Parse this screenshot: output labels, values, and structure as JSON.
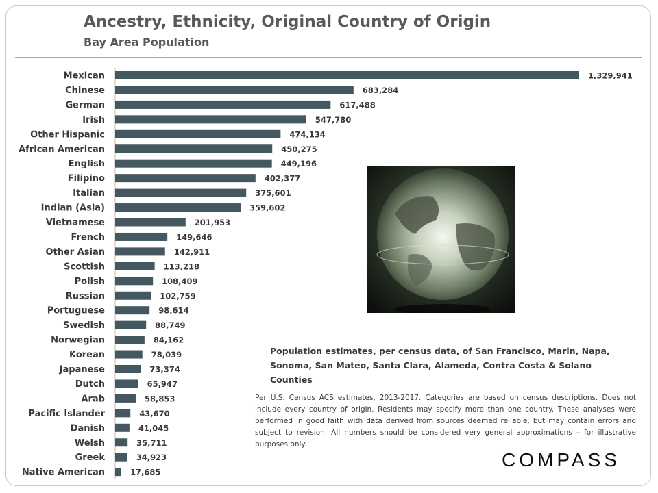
{
  "header": {
    "title": "Ancestry, Ethnicity, Original Country of Origin",
    "subtitle": "Bay Area Population"
  },
  "chart_data": {
    "type": "bar",
    "orientation": "horizontal",
    "title": "Ancestry, Ethnicity, Original Country of Origin",
    "subtitle": "Bay Area Population",
    "xlabel": "",
    "ylabel": "",
    "xlim": [
      0,
      1329941
    ],
    "grid": false,
    "categories": [
      "Mexican",
      "Chinese",
      "German",
      "Irish",
      "Other Hispanic",
      "African American",
      "English",
      "Filipino",
      "Italian",
      "Indian (Asia)",
      "Vietnamese",
      "French",
      "Other Asian",
      "Scottish",
      "Polish",
      "Russian",
      "Portuguese",
      "Swedish",
      "Norwegian",
      "Korean",
      "Japanese",
      "Dutch",
      "Arab",
      "Pacific Islander",
      "Danish",
      "Welsh",
      "Greek",
      "Native American"
    ],
    "values": [
      1329941,
      683284,
      617488,
      547780,
      474134,
      450275,
      449196,
      402377,
      375601,
      359602,
      201953,
      149646,
      142911,
      113218,
      108409,
      102759,
      98614,
      88749,
      84162,
      78039,
      73374,
      65947,
      58853,
      43670,
      41045,
      35711,
      34923,
      17685
    ],
    "value_labels": [
      "1,329,941",
      "683,284",
      "617,488",
      "547,780",
      "474,134",
      "450,275",
      "449,196",
      "402,377",
      "375,601",
      "359,602",
      "201,953",
      "149,646",
      "142,911",
      "113,218",
      "108,409",
      "102,759",
      "98,614",
      "88,749",
      "84,162",
      "78,039",
      "73,374",
      "65,947",
      "58,853",
      "43,670",
      "41,045",
      "35,711",
      "34,923",
      "17,685"
    ],
    "bar_color": "#44585f"
  },
  "note": {
    "line1": "Population estimates, per census data, of San Francisco, Marin, Napa,",
    "line2": "Sonoma, San Mateo, Santa Clara, Alameda, Contra Costa & Solano Counties"
  },
  "disclaimer": "Per U.S. Census ACS estimates, 2013-2017. Categories are based on census descriptions. Does not include every country of origin. Residents may specify more than one country. These analyses were performed in good faith with data derived from sources deemed reliable, but may contain errors and subject to revision.  All numbers should be considered very general approximations – for illustrative purposes only.",
  "image": {
    "icon": "glass-globe-image"
  },
  "logo": {
    "text": "COMPASS"
  }
}
